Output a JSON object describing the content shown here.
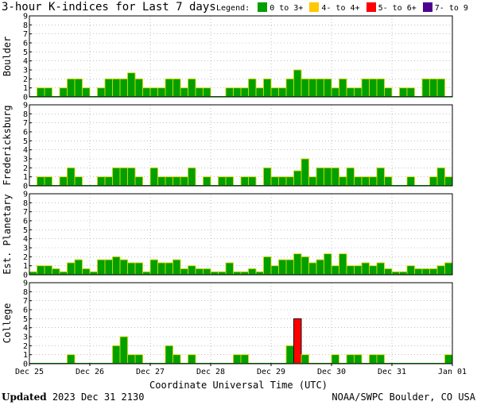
{
  "title": "3-hour K-indices for Last 7 days",
  "legend": {
    "label": "Legend:",
    "items": [
      {
        "label": "0 to 3+",
        "color": "#00a000"
      },
      {
        "label": "4- to 4+",
        "color": "#ffc800"
      },
      {
        "label": "5- to 6+",
        "color": "#ff0000"
      },
      {
        "label": "7- to 9",
        "color": "#500090"
      }
    ]
  },
  "chart_data": {
    "type": "bar",
    "xlabel": "Coordinate Universal Time (UTC)",
    "x_ticks": [
      "Dec 25",
      "Dec 26",
      "Dec 27",
      "Dec 28",
      "Dec 29",
      "Dec 30",
      "Dec 31",
      "Jan 01"
    ],
    "y_ticks": [
      0,
      1,
      2,
      3,
      4,
      5,
      6,
      7,
      8,
      9
    ],
    "ylim": [
      0,
      9
    ],
    "grid": true,
    "intervals_per_day": 8,
    "series": [
      {
        "name": "Boulder",
        "values": [
          0,
          1,
          1,
          0,
          1,
          2,
          2,
          1,
          0,
          1,
          2,
          2,
          2,
          2.67,
          2,
          1,
          1,
          1,
          2,
          2,
          1,
          2,
          1,
          1,
          0,
          0,
          1,
          1,
          1,
          2,
          1,
          2,
          1,
          1,
          2,
          3,
          2,
          2,
          2,
          2,
          1,
          2,
          1,
          1,
          2,
          2,
          2,
          1,
          0,
          1,
          1,
          0,
          2,
          2,
          2,
          0
        ]
      },
      {
        "name": "Fredericksburg",
        "values": [
          0,
          1,
          1,
          0,
          1,
          2,
          1,
          0,
          0,
          1,
          1,
          2,
          2,
          2,
          1,
          0,
          2,
          1,
          1,
          1,
          1,
          2,
          0,
          1,
          0,
          1,
          1,
          0,
          1,
          1,
          0,
          2,
          1,
          1,
          1,
          1.67,
          3,
          1,
          2,
          2,
          2,
          1,
          2,
          1,
          1,
          1,
          2,
          1,
          0,
          0,
          1,
          0,
          0,
          1,
          2,
          1
        ]
      },
      {
        "name": "Est. Planetary",
        "values": [
          0.33,
          1,
          1,
          0.67,
          0.33,
          1.33,
          1.67,
          0.67,
          0.33,
          1.67,
          1.67,
          2,
          1.67,
          1.33,
          1.33,
          0.33,
          1.67,
          1.33,
          1.33,
          1.67,
          0.67,
          1,
          0.67,
          0.67,
          0.33,
          0.33,
          1.33,
          0.33,
          0.33,
          0.67,
          0.33,
          2,
          1,
          1.67,
          1.67,
          2.33,
          2,
          1.33,
          1.67,
          2.33,
          1,
          2.33,
          1,
          1,
          1.33,
          1,
          1.33,
          0.67,
          0.33,
          0.33,
          1,
          0.67,
          0.67,
          0.67,
          1,
          1.33
        ]
      },
      {
        "name": "College",
        "values": [
          0,
          0,
          0,
          0,
          0,
          1,
          0,
          0,
          0,
          0,
          0,
          2,
          3,
          1,
          1,
          0,
          0,
          0,
          2,
          1,
          0,
          1,
          0,
          0,
          0,
          0,
          0,
          1,
          1,
          0,
          0,
          0,
          0,
          0,
          2,
          5,
          1,
          0,
          0,
          0,
          1,
          0,
          1,
          1,
          0,
          1,
          1,
          0,
          0,
          0,
          0,
          0,
          0,
          0,
          0,
          1
        ]
      }
    ]
  },
  "footer": {
    "updated_label": "Updated",
    "updated_value": "2023 Dec 31 2130",
    "credit": "NOAA/SWPC Boulder, CO USA"
  }
}
